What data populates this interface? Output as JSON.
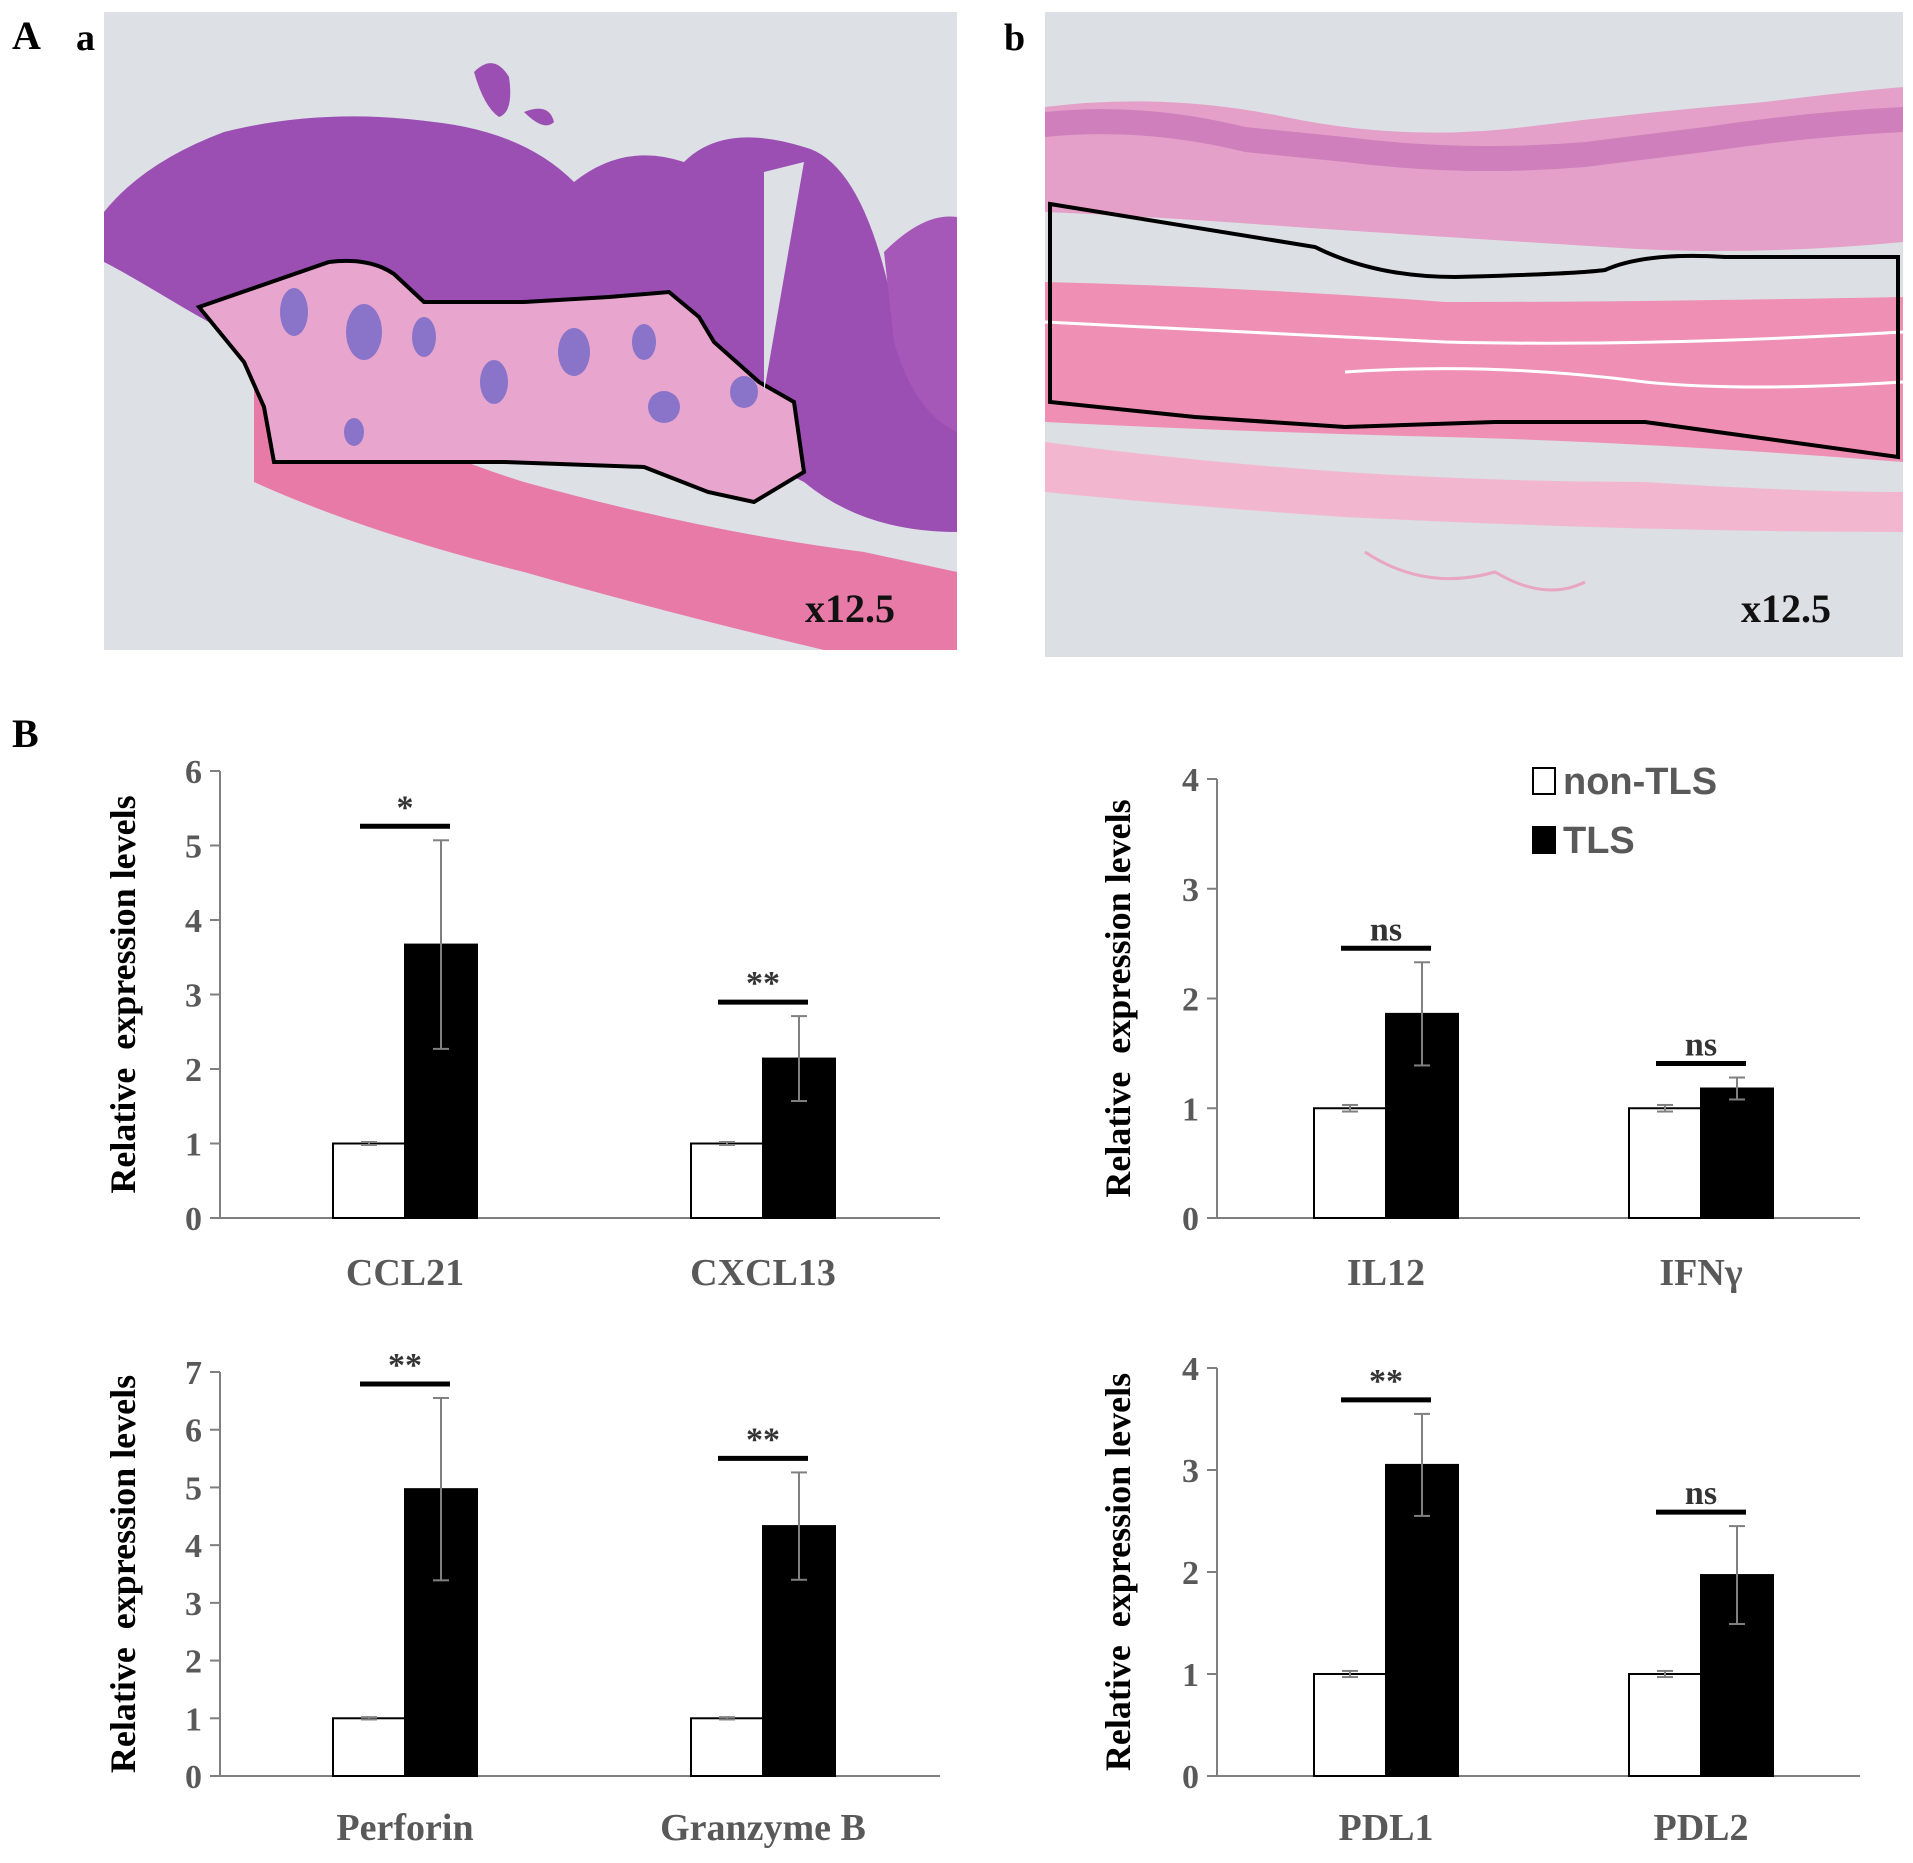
{
  "panel_A_label": "A",
  "panel_B_label": "B",
  "images": [
    {
      "label": "a",
      "magnification": "x12.5"
    },
    {
      "label": "b",
      "magnification": "x12.5"
    }
  ],
  "legend": {
    "items": [
      {
        "label": "non-TLS",
        "fill": "#ffffff"
      },
      {
        "label": "TLS",
        "fill": "#000000"
      }
    ]
  },
  "colors": {
    "non_tls": "#ffffff",
    "tls": "#000000",
    "axis_text": "#595959"
  },
  "chart_data": [
    {
      "type": "bar",
      "ylabel": "Relative  expression levels",
      "ylim": [
        0,
        6
      ],
      "yticks": [
        "0",
        "1",
        "2",
        "3",
        "4",
        "5",
        "6"
      ],
      "categories": [
        "CCL21",
        "CXCL13"
      ],
      "series": [
        {
          "name": "non-TLS",
          "values": [
            1.0,
            1.0
          ],
          "errors": [
            0.02,
            0.02
          ]
        },
        {
          "name": "TLS",
          "values": [
            3.67,
            2.14
          ],
          "errors": [
            1.4,
            0.57
          ]
        }
      ],
      "significance": [
        "*",
        "**"
      ]
    },
    {
      "type": "bar",
      "ylabel": "Relative  expression levels",
      "ylim": [
        0,
        4
      ],
      "yticks": [
        "0",
        "1",
        "2",
        "3",
        "4"
      ],
      "categories": [
        "IL12",
        "IFNγ"
      ],
      "series": [
        {
          "name": "non-TLS",
          "values": [
            1.0,
            1.0
          ],
          "errors": [
            0.03,
            0.03
          ]
        },
        {
          "name": "TLS",
          "values": [
            1.86,
            1.18
          ],
          "errors": [
            0.47,
            0.1
          ]
        }
      ],
      "significance": [
        "ns",
        "ns"
      ],
      "legend": "top-right"
    },
    {
      "type": "bar",
      "ylabel": "Relative  expression levels",
      "ylim": [
        0,
        7
      ],
      "yticks": [
        "0",
        "1",
        "2",
        "3",
        "4",
        "5",
        "6",
        "7"
      ],
      "categories": [
        "Perforin",
        "Granzyme B"
      ],
      "series": [
        {
          "name": "non-TLS",
          "values": [
            1.0,
            1.0
          ],
          "errors": [
            0.02,
            0.02
          ]
        },
        {
          "name": "TLS",
          "values": [
            4.97,
            4.33
          ],
          "errors": [
            1.58,
            0.93
          ]
        }
      ],
      "significance": [
        "**",
        "**"
      ]
    },
    {
      "type": "bar",
      "ylabel": "Relative  expression levels",
      "ylim": [
        0,
        4
      ],
      "yticks": [
        "0",
        "1",
        "2",
        "3",
        "4"
      ],
      "categories": [
        "PDL1",
        "PDL2"
      ],
      "series": [
        {
          "name": "non-TLS",
          "values": [
            1.0,
            1.0
          ],
          "errors": [
            0.03,
            0.03
          ]
        },
        {
          "name": "TLS",
          "values": [
            3.05,
            1.97
          ],
          "errors": [
            0.5,
            0.48
          ]
        }
      ],
      "significance": [
        "**",
        "ns"
      ]
    }
  ]
}
